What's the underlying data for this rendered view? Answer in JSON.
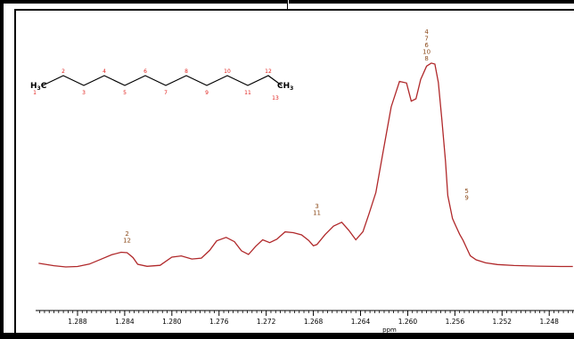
{
  "chart_data": {
    "type": "line",
    "xlabel": "ppm",
    "ylabel": "",
    "title": "",
    "x_reversed": true,
    "xlim": [
      1.2914,
      1.2459
    ],
    "ylim": [
      0,
      1.03
    ],
    "x_tick_labels": [
      "1.288",
      "1.284",
      "1.280",
      "1.276",
      "1.272",
      "1.268",
      "1.264",
      "1.260",
      "1.256",
      "1.252",
      "1.248"
    ],
    "x_ticks": [
      1.288,
      1.284,
      1.28,
      1.276,
      1.272,
      1.268,
      1.264,
      1.26,
      1.256,
      1.252,
      1.248
    ],
    "line_color": "#b0282a",
    "series": [
      {
        "x": [
          1.2913,
          1.29,
          1.289,
          1.288,
          1.287,
          1.286,
          1.2851,
          1.2843,
          1.2838,
          1.2833,
          1.2829,
          1.2821,
          1.281,
          1.28,
          1.2792,
          1.2783,
          1.2775,
          1.2768,
          1.2762,
          1.2754,
          1.2747,
          1.2741,
          1.2735,
          1.2729,
          1.2723,
          1.2717,
          1.2711,
          1.2704,
          1.2697,
          1.269,
          1.2684,
          1.268,
          1.2677,
          1.267,
          1.2663,
          1.2656,
          1.265,
          1.2644,
          1.2638,
          1.2633,
          1.2627,
          1.2621,
          1.2614,
          1.2607,
          1.2601,
          1.2597,
          1.2593,
          1.2589,
          1.2584,
          1.258,
          1.2577,
          1.2574,
          1.2571,
          1.2568,
          1.2566,
          1.2562,
          1.2559,
          1.2556,
          1.2553,
          1.255,
          1.2547,
          1.2542,
          1.2534,
          1.2524,
          1.251,
          1.249,
          1.247,
          1.246
        ],
        "y": [
          0.018,
          0.006,
          0.0,
          0.002,
          0.014,
          0.038,
          0.06,
          0.072,
          0.07,
          0.046,
          0.013,
          0.003,
          0.008,
          0.048,
          0.054,
          0.039,
          0.043,
          0.081,
          0.128,
          0.145,
          0.124,
          0.079,
          0.061,
          0.101,
          0.133,
          0.119,
          0.136,
          0.172,
          0.168,
          0.157,
          0.13,
          0.104,
          0.11,
          0.159,
          0.2,
          0.219,
          0.18,
          0.133,
          0.173,
          0.258,
          0.365,
          0.562,
          0.785,
          0.91,
          0.902,
          0.813,
          0.825,
          0.92,
          0.985,
          1.0,
          0.995,
          0.905,
          0.72,
          0.52,
          0.35,
          0.237,
          0.198,
          0.16,
          0.13,
          0.092,
          0.055,
          0.035,
          0.02,
          0.012,
          0.007,
          0.004,
          0.002,
          0.002
        ]
      }
    ],
    "annotations": [
      {
        "lines": [
          "2",
          "12"
        ],
        "x": 1.2838
      },
      {
        "lines": [
          "3",
          "11"
        ],
        "x": 1.2677
      },
      {
        "lines": [
          "4",
          "7",
          "6",
          "10",
          "8"
        ],
        "x": 1.2584
      },
      {
        "lines": [
          "5",
          "9"
        ],
        "x": 1.2553
      }
    ]
  },
  "molecule": {
    "left_group": "H₃C",
    "right_group": "CH₃",
    "atom_numbers": [
      "1",
      "2",
      "3",
      "4",
      "5",
      "6",
      "7",
      "8",
      "9",
      "10",
      "11",
      "12",
      "13"
    ]
  }
}
